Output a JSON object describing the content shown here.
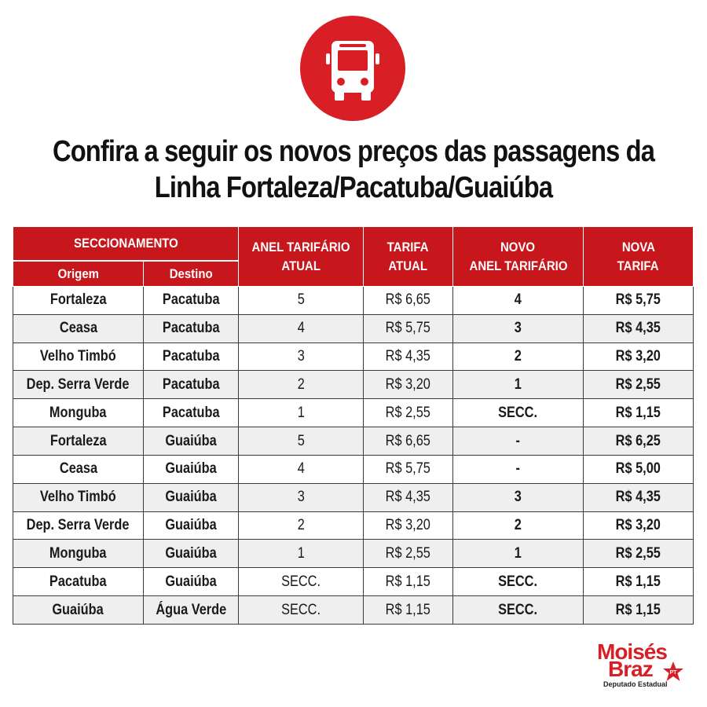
{
  "title": {
    "line1": "Confira a seguir os novos preços das passagens da",
    "line2": "Linha Fortaleza/Pacatuba/Guaiúba"
  },
  "icon": "bus-icon",
  "colors": {
    "accent": "#d81f26",
    "header_bg": "#c8161d"
  },
  "table": {
    "headers": {
      "seccionamento": "SECCIONAMENTO",
      "origem": "Origem",
      "destino": "Destino",
      "anel_atual_1": "ANEL TARIFÁRIO",
      "anel_atual_2": "ATUAL",
      "tarifa_atual_1": "TARIFA",
      "tarifa_atual_2": "ATUAL",
      "novo_anel_1": "NOVO",
      "novo_anel_2": "ANEL TARIFÁRIO",
      "nova_tarifa_1": "NOVA",
      "nova_tarifa_2": "TARIFA"
    },
    "rows": [
      {
        "origem": "Fortaleza",
        "destino": "Pacatuba",
        "anel_atual": "5",
        "tarifa_atual": "R$ 6,65",
        "novo_anel": "4",
        "nova_tarifa": "R$ 5,75"
      },
      {
        "origem": "Ceasa",
        "destino": "Pacatuba",
        "anel_atual": "4",
        "tarifa_atual": "R$ 5,75",
        "novo_anel": "3",
        "nova_tarifa": "R$ 4,35"
      },
      {
        "origem": "Velho Timbó",
        "destino": "Pacatuba",
        "anel_atual": "3",
        "tarifa_atual": "R$ 4,35",
        "novo_anel": "2",
        "nova_tarifa": "R$ 3,20"
      },
      {
        "origem": "Dep. Serra Verde",
        "destino": "Pacatuba",
        "anel_atual": "2",
        "tarifa_atual": "R$ 3,20",
        "novo_anel": "1",
        "nova_tarifa": "R$ 2,55"
      },
      {
        "origem": "Monguba",
        "destino": "Pacatuba",
        "anel_atual": "1",
        "tarifa_atual": "R$ 2,55",
        "novo_anel": "SECC.",
        "nova_tarifa": "R$ 1,15"
      },
      {
        "origem": "Fortaleza",
        "destino": "Guaiúba",
        "anel_atual": "5",
        "tarifa_atual": "R$ 6,65",
        "novo_anel": "-",
        "nova_tarifa": "R$ 6,25"
      },
      {
        "origem": "Ceasa",
        "destino": "Guaiúba",
        "anel_atual": "4",
        "tarifa_atual": "R$ 5,75",
        "novo_anel": "-",
        "nova_tarifa": "R$ 5,00"
      },
      {
        "origem": "Velho Timbó",
        "destino": "Guaiúba",
        "anel_atual": "3",
        "tarifa_atual": "R$ 4,35",
        "novo_anel": "3",
        "nova_tarifa": "R$ 4,35"
      },
      {
        "origem": "Dep. Serra Verde",
        "destino": "Guaiúba",
        "anel_atual": "2",
        "tarifa_atual": "R$ 3,20",
        "novo_anel": "2",
        "nova_tarifa": "R$ 3,20"
      },
      {
        "origem": "Monguba",
        "destino": "Guaiúba",
        "anel_atual": "1",
        "tarifa_atual": "R$ 2,55",
        "novo_anel": "1",
        "nova_tarifa": "R$ 2,55"
      },
      {
        "origem": "Pacatuba",
        "destino": "Guaiúba",
        "anel_atual": "SECC.",
        "tarifa_atual": "R$ 1,15",
        "novo_anel": "SECC.",
        "nova_tarifa": "R$ 1,15"
      },
      {
        "origem": "Guaiúba",
        "destino": "Água Verde",
        "anel_atual": "SECC.",
        "tarifa_atual": "R$ 1,15",
        "novo_anel": "SECC.",
        "nova_tarifa": "R$ 1,15"
      }
    ]
  },
  "logo": {
    "line1": "Moisés",
    "line2": "Braz",
    "party": "PT",
    "subtitle": "Deputado Estadual"
  }
}
